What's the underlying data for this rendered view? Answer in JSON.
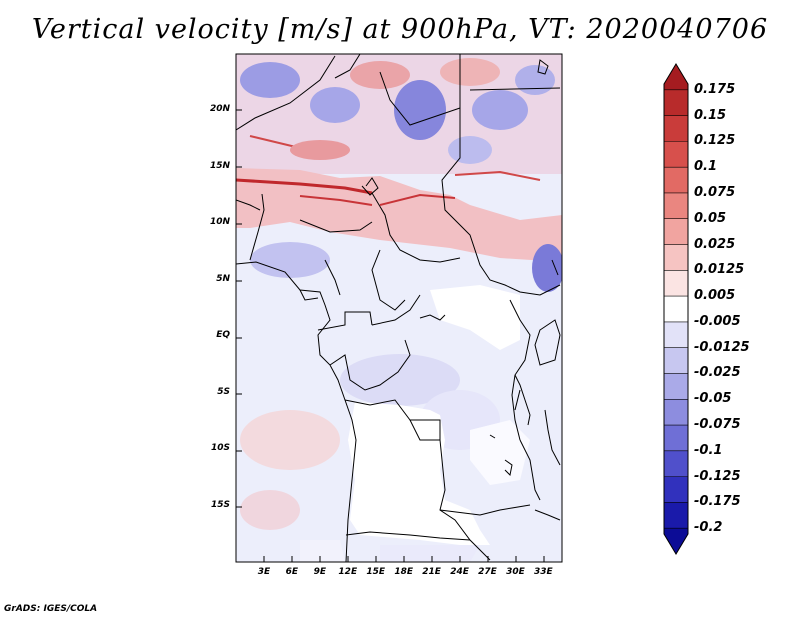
{
  "title": "Vertical velocity [m/s] at 900hPa, VT: 2020040706",
  "credit": "GrADS: IGES/COLA",
  "map": {
    "lon_range": [
      0,
      35
    ],
    "lat_range": [
      -20,
      25
    ],
    "y_ticks": [
      {
        "lat": 20,
        "label": "20N"
      },
      {
        "lat": 15,
        "label": "15N"
      },
      {
        "lat": 10,
        "label": "10N"
      },
      {
        "lat": 5,
        "label": "5N"
      },
      {
        "lat": 0,
        "label": "EQ"
      },
      {
        "lat": -5,
        "label": "5S"
      },
      {
        "lat": -10,
        "label": "10S"
      },
      {
        "lat": -15,
        "label": "15S"
      }
    ],
    "x_ticks": [
      {
        "lon": 3,
        "label": "3E"
      },
      {
        "lon": 6,
        "label": "6E"
      },
      {
        "lon": 9,
        "label": "9E"
      },
      {
        "lon": 12,
        "label": "12E"
      },
      {
        "lon": 15,
        "label": "15E"
      },
      {
        "lon": 18,
        "label": "18E"
      },
      {
        "lon": 21,
        "label": "21E"
      },
      {
        "lon": 24,
        "label": "24E"
      },
      {
        "lon": 27,
        "label": "27E"
      },
      {
        "lon": 30,
        "label": "30E"
      },
      {
        "lon": 33,
        "label": "33E"
      }
    ]
  },
  "colorbar": {
    "labels": [
      "0.175",
      "0.15",
      "0.125",
      "0.1",
      "0.075",
      "0.05",
      "0.025",
      "0.0125",
      "0.005",
      "-0.005",
      "-0.0125",
      "-0.025",
      "-0.05",
      "-0.075",
      "-0.1",
      "-0.125",
      "-0.175",
      "-0.2"
    ],
    "colors": [
      "#a51c20",
      "#b82b2b",
      "#c93c3a",
      "#d7504c",
      "#e26a64",
      "#ea8680",
      "#f1a4a0",
      "#f6c4c2",
      "#fbe4e3",
      "#ffffff",
      "#e2e2f8",
      "#c7c7f0",
      "#aaaae8",
      "#8d8ddf",
      "#6f6fd6",
      "#5050cb",
      "#3131bd",
      "#1a1aaa",
      "#0c0c96"
    ]
  }
}
